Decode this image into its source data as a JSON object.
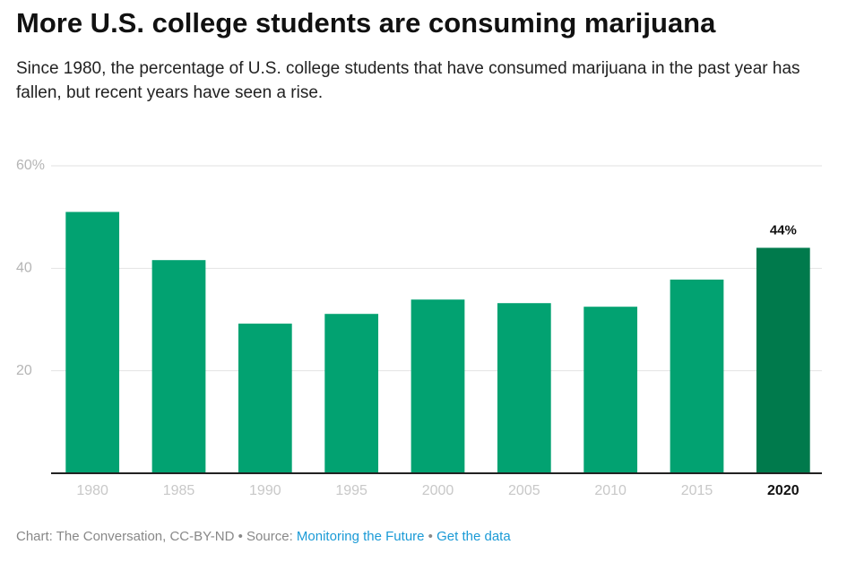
{
  "chart_data": {
    "type": "bar",
    "title": "More U.S. college students are consuming marijuana",
    "subtitle": "Since 1980, the percentage of U.S. college students that have consumed marijuana in the past year has fallen, but recent years have seen a rise.",
    "categories": [
      "1980",
      "1985",
      "1990",
      "1995",
      "2000",
      "2005",
      "2010",
      "2015",
      "2020"
    ],
    "values": [
      51,
      41.6,
      29.2,
      31.1,
      33.9,
      33.2,
      32.5,
      37.8,
      44
    ],
    "value_labels": [
      null,
      null,
      null,
      null,
      null,
      null,
      null,
      null,
      "44%"
    ],
    "colors": [
      "#02a271",
      "#02a271",
      "#02a271",
      "#02a271",
      "#02a271",
      "#02a271",
      "#02a271",
      "#02a271",
      "#007a4c"
    ],
    "ylim": [
      0,
      60
    ],
    "yticks": [
      20,
      40,
      {
        "value": 60,
        "label": "60%"
      }
    ],
    "grid": true
  },
  "footer": {
    "credit": "Chart: The Conversation, CC-BY-ND",
    "separator": "•",
    "source_label": "Source:",
    "source_link": "Monitoring the Future",
    "data_link": "Get the data"
  }
}
